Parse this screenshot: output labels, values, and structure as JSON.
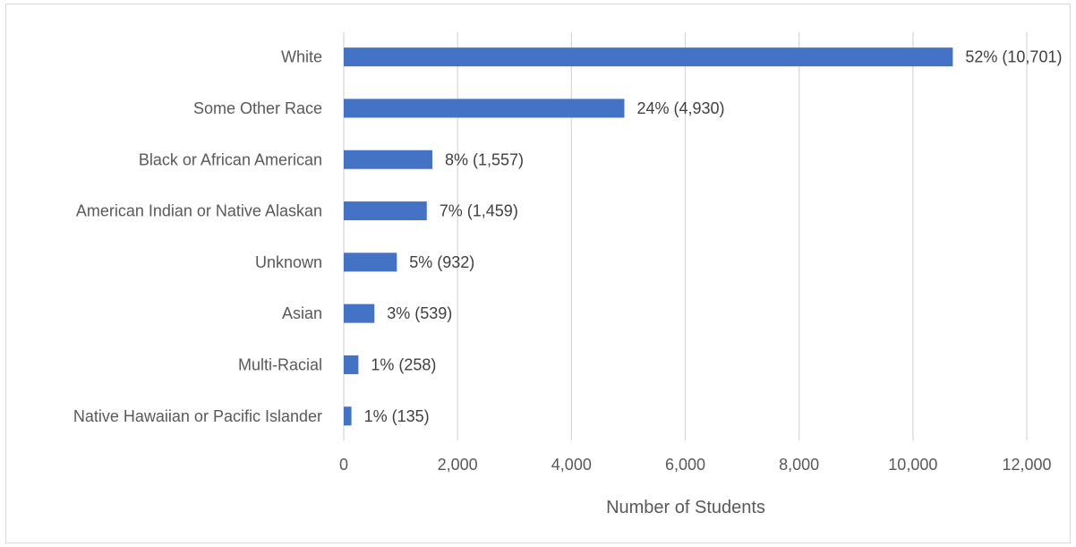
{
  "chart_data": {
    "type": "bar",
    "orientation": "horizontal",
    "categories": [
      "White",
      "Some Other Race",
      "Black or African American",
      "American Indian or Native Alaskan",
      "Unknown",
      "Asian",
      "Multi-Racial",
      "Native Hawaiian or Pacific Islander"
    ],
    "values": [
      10701,
      4930,
      1557,
      1459,
      932,
      539,
      258,
      135
    ],
    "data_labels": [
      "52% (10,701)",
      "24% (4,930)",
      "8% (1,557)",
      "7% (1,459)",
      "5% (932)",
      "3% (539)",
      "1% (258)",
      "1% (135)"
    ],
    "title": "",
    "xlabel": "Number of Students",
    "ylabel": "",
    "xlim": [
      0,
      12000
    ],
    "x_ticks": [
      0,
      2000,
      4000,
      6000,
      8000,
      10000,
      12000
    ],
    "x_tick_labels": [
      "0",
      "2,000",
      "4,000",
      "6,000",
      "8,000",
      "10,000",
      "12,000"
    ],
    "grid": "vertical",
    "legend": "none",
    "bar_color": "#4472C4",
    "grid_color": "#d9d9d9"
  }
}
